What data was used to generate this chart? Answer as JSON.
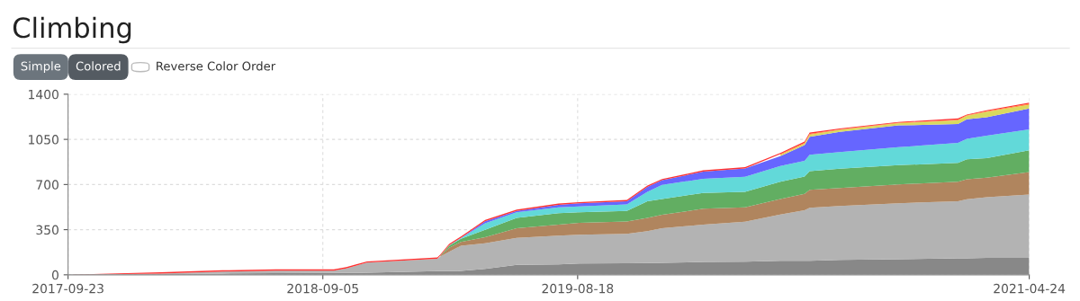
{
  "chart_data": {
    "type": "area",
    "title": "Climbing",
    "stacked": true,
    "annotations": [
      "Simple",
      "Colored",
      "Reverse Color Order"
    ],
    "x": [
      "2017-09-23",
      "2018-01-27",
      "2018-04-21",
      "2018-07-03",
      "2018-09-20",
      "2018-10-07",
      "2018-10-19",
      "2018-11-04",
      "2019-02-08",
      "2019-02-12",
      "2019-02-24",
      "2019-03-12",
      "2019-04-14",
      "2019-05-27",
      "2019-07-23",
      "2019-08-20",
      "2019-10-24",
      "2019-11-21",
      "2019-12-11",
      "2020-02-05",
      "2020-04-02",
      "2020-05-20",
      "2020-06-22",
      "2020-06-29",
      "2020-08-09",
      "2020-10-28",
      "2021-01-17",
      "2021-01-29",
      "2021-02-25",
      "2021-04-24"
    ],
    "series": [
      {
        "color": "#888888",
        "values": [
          0,
          5,
          10,
          13,
          15,
          15,
          15,
          16,
          28,
          28,
          28,
          30,
          46,
          77,
          80,
          88,
          90,
          92,
          93,
          100,
          102,
          109,
          109,
          109,
          116,
          121,
          128,
          128,
          132,
          132
        ]
      },
      {
        "color": "#b3b3b3",
        "values": [
          0,
          5,
          15,
          19,
          17,
          35,
          54,
          78,
          97,
          114,
          151,
          195,
          199,
          210,
          223,
          222,
          227,
          246,
          268,
          289,
          310,
          358,
          392,
          410,
          417,
          434,
          442,
          457,
          470,
          490
        ]
      },
      {
        "color": "#b0855e",
        "values": [
          null,
          null,
          null,
          null,
          null,
          null,
          null,
          null,
          null,
          4,
          30,
          30,
          46,
          74,
          86,
          93,
          97,
          104,
          104,
          123,
          111,
          121,
          127,
          140,
          139,
          146,
          151,
          156,
          151,
          174
        ]
      },
      {
        "color": "#62ae62",
        "values": [
          null,
          null,
          null,
          null,
          null,
          null,
          null,
          null,
          null,
          2,
          16,
          24,
          58,
          81,
          88,
          81,
          81,
          128,
          123,
          123,
          121,
          134,
          133,
          144,
          151,
          149,
          147,
          155,
          151,
          169
        ]
      },
      {
        "color": "#62d9d9",
        "values": [
          null,
          null,
          null,
          null,
          null,
          null,
          null,
          null,
          null,
          null,
          3,
          6,
          51,
          42,
          46,
          46,
          51,
          74,
          109,
          109,
          116,
          121,
          123,
          127,
          128,
          139,
          155,
          158,
          174,
          163
        ]
      },
      {
        "color": "#6666ff",
        "values": [
          null,
          null,
          null,
          null,
          null,
          null,
          null,
          null,
          null,
          null,
          1,
          2,
          15,
          12,
          20,
          24,
          24,
          38,
          36,
          56,
          64,
          77,
          121,
          140,
          157,
          169,
          146,
          151,
          144,
          162
        ]
      },
      {
        "color": "#d9d95e",
        "values": [
          null,
          null,
          null,
          null,
          null,
          null,
          null,
          null,
          null,
          null,
          null,
          null,
          null,
          null,
          null,
          null,
          null,
          null,
          null,
          null,
          null,
          8,
          11,
          16,
          16,
          17,
          28,
          26,
          42,
          28
        ]
      },
      {
        "color": "#ff9933",
        "values": [
          null,
          null,
          null,
          null,
          null,
          null,
          null,
          null,
          null,
          null,
          null,
          null,
          null,
          null,
          null,
          null,
          null,
          null,
          null,
          null,
          null,
          7,
          7,
          7,
          4,
          4,
          5,
          6,
          5,
          7
        ]
      },
      {
        "color": "#ff3333",
        "values": [
          0,
          10,
          10,
          10,
          10,
          10,
          10,
          10,
          10,
          10,
          10,
          10,
          10,
          10,
          10,
          10,
          10,
          10,
          10,
          10,
          10,
          10,
          10,
          10,
          7,
          6,
          10,
          6,
          7,
          10
        ]
      }
    ],
    "xlim": [
      "2017-09-23",
      "2021-04-24"
    ],
    "xticks": [
      "2017-09-23",
      "2018-09-05",
      "2019-08-18",
      "2021-04-24"
    ],
    "ylim": [
      0,
      1400
    ],
    "yticks": [
      0,
      350,
      700,
      1050,
      1400
    ],
    "grid": true
  }
}
